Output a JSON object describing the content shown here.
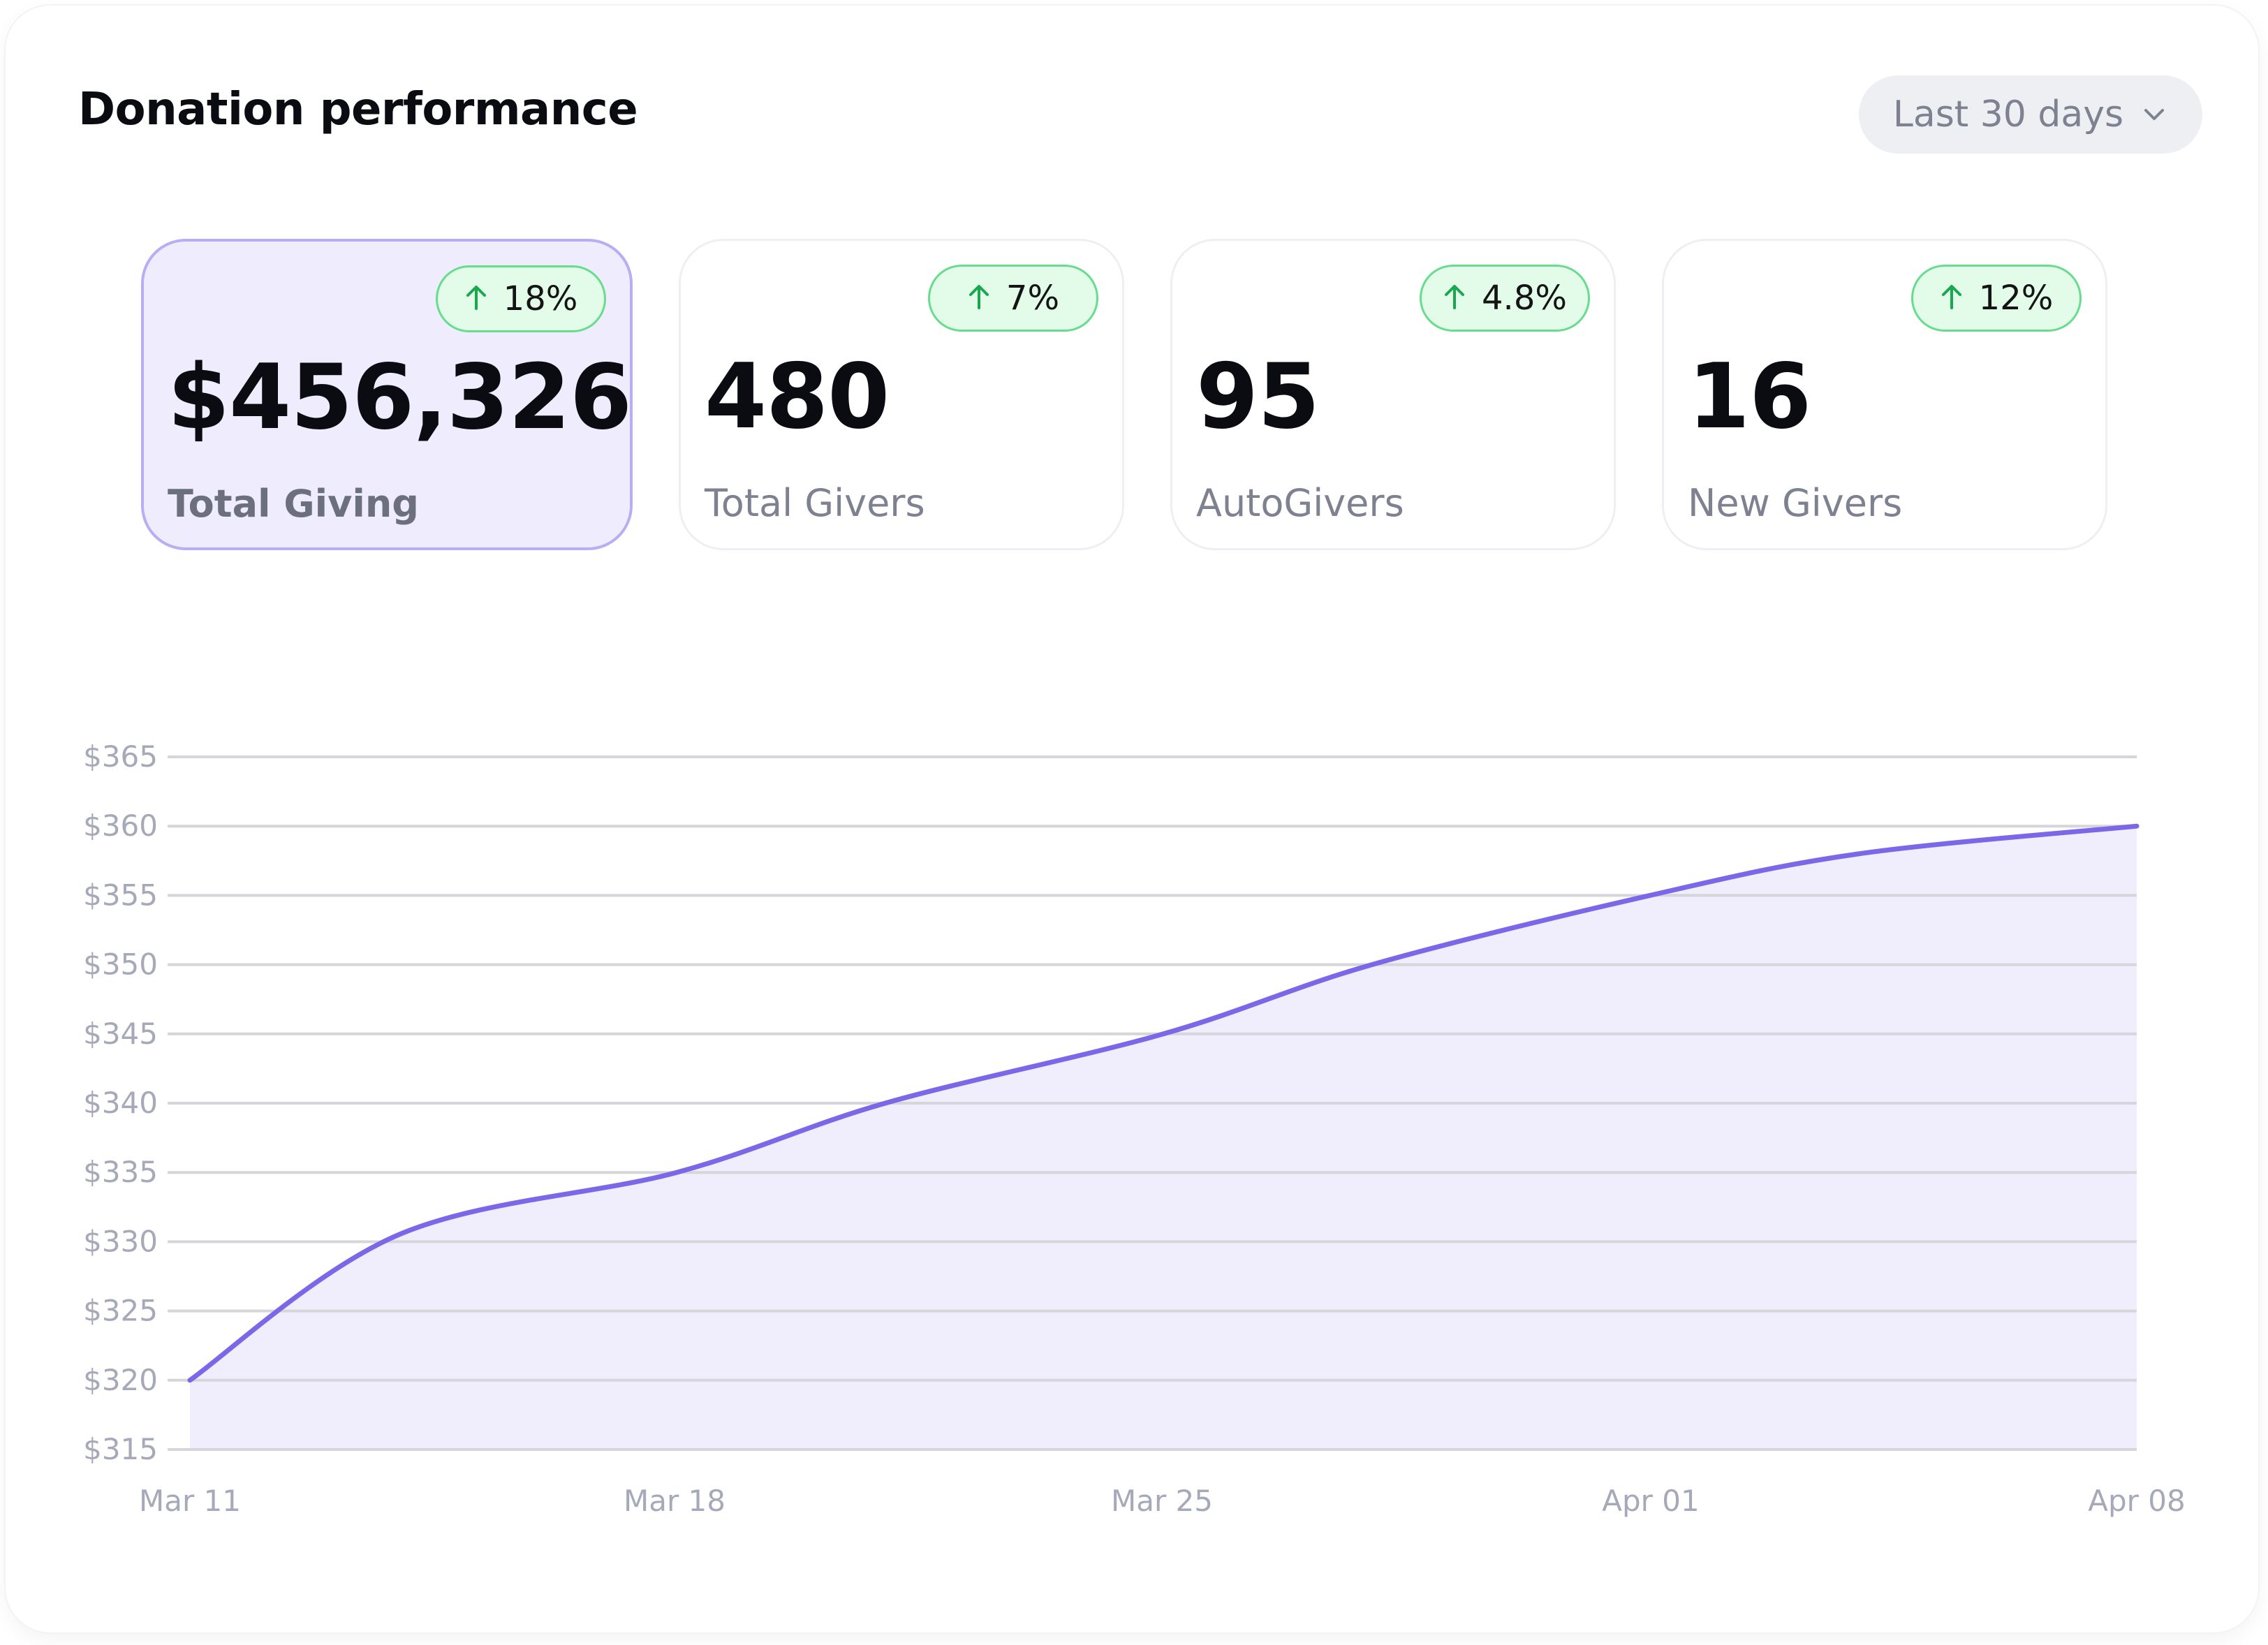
{
  "header": {
    "title": "Donation performance",
    "range_select": {
      "selected": "Last 30 days",
      "icon": "chevron-down-icon"
    }
  },
  "stats": [
    {
      "value": "$456,326",
      "label": "Total Giving",
      "change": "18%",
      "trend": "up",
      "active": true
    },
    {
      "value": "480",
      "label": "Total Givers",
      "change": "7%",
      "trend": "up",
      "active": false
    },
    {
      "value": "95",
      "label": "AutoGivers",
      "change": "4.8%",
      "trend": "up",
      "active": false
    },
    {
      "value": "16",
      "label": "New Givers",
      "change": "12%",
      "trend": "up",
      "active": false
    }
  ],
  "colors": {
    "accent": "#7b68e8",
    "area_fill": "#f0eefc",
    "badge_bg": "#e3fbe9",
    "badge_border": "#66dd8c",
    "trend_up": "#1aa84f",
    "gridline": "#d6d6da",
    "axis_text": "#a6a9b8"
  },
  "chart_data": {
    "type": "area",
    "title": "",
    "xlabel": "",
    "ylabel": "",
    "ylim": [
      315,
      365
    ],
    "y_ticks": [
      315,
      320,
      325,
      330,
      335,
      340,
      345,
      350,
      355,
      360,
      365
    ],
    "y_tick_labels": [
      "$315",
      "$320",
      "$325",
      "$330",
      "$335",
      "$340",
      "$345",
      "$350",
      "$355",
      "$360",
      "$365"
    ],
    "x_ticks": [
      "Mar 11",
      "Mar 18",
      "Mar 25",
      "Apr 01",
      "Apr 08"
    ],
    "grid": true,
    "legend": "none",
    "series": [
      {
        "x": [
          "Mar 11",
          "Mar 14",
          "Mar 18",
          "Mar 21",
          "Mar 25",
          "Mar 28",
          "Apr 01",
          "Apr 04",
          "Apr 08"
        ],
        "values": [
          320,
          330.5,
          335,
          340,
          345,
          350,
          355,
          358,
          360
        ]
      }
    ]
  }
}
